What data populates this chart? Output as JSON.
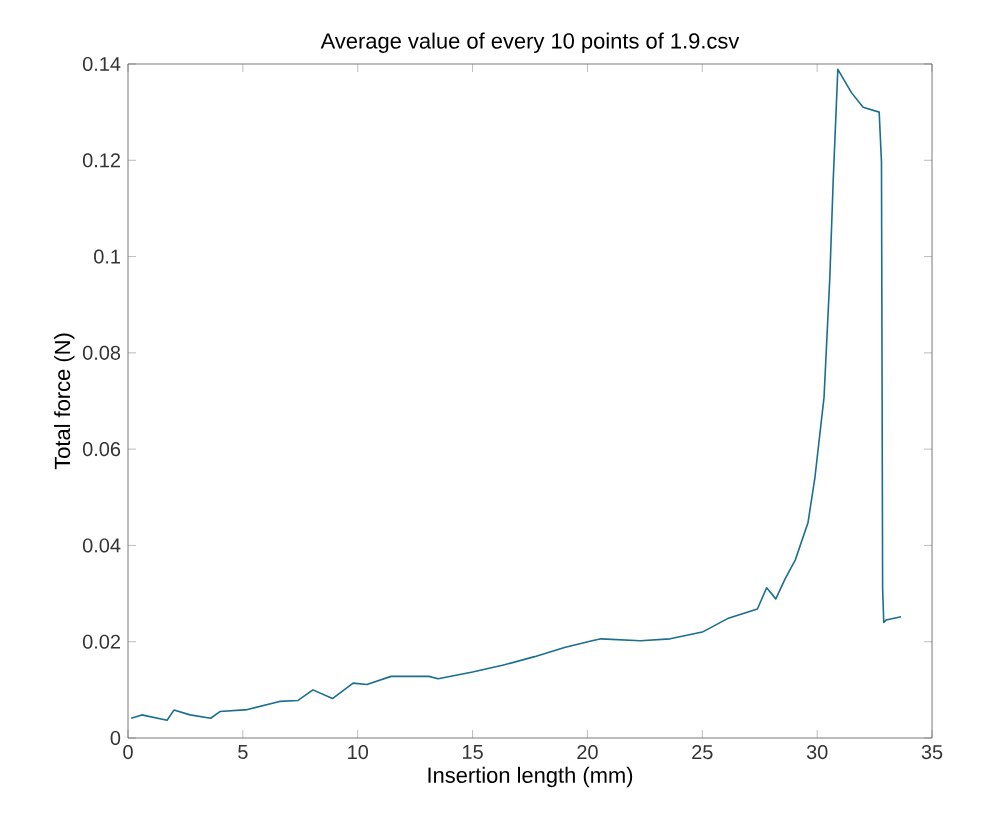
{
  "chart_data": {
    "type": "line",
    "title": "Average value of every 10 points of 1.9.csv",
    "xlabel": "Insertion length (mm)",
    "ylabel": "Total force (N)",
    "xlim": [
      0,
      35
    ],
    "ylim": [
      0,
      0.14
    ],
    "xticks": [
      0,
      5,
      10,
      15,
      20,
      25,
      30,
      35
    ],
    "yticks": [
      0,
      0.02,
      0.04,
      0.06,
      0.08,
      0.1,
      0.12,
      0.14
    ],
    "grid": false,
    "marker": "none",
    "line_style": "solid",
    "series": [
      {
        "color": "#1a6e8e",
        "x": [
          0.14,
          0.6,
          1.7,
          2.0,
          2.7,
          3.6,
          4.0,
          5.2,
          6.6,
          7.4,
          8.05,
          8.9,
          9.8,
          10.4,
          11.45,
          13.1,
          13.5,
          15.0,
          16.3,
          17.7,
          19.0,
          20.2,
          20.6,
          22.3,
          23.6,
          25.0,
          26.1,
          27.4,
          27.8,
          28.2,
          28.6,
          29.05,
          29.6,
          29.9,
          30.3,
          30.55,
          30.7,
          30.9,
          31.5,
          32.0,
          32.7,
          32.8,
          32.85,
          32.9,
          33.0,
          33.65
        ],
        "values": [
          0.0041,
          0.0048,
          0.0037,
          0.0058,
          0.0048,
          0.0041,
          0.0055,
          0.0059,
          0.0076,
          0.0078,
          0.01,
          0.0082,
          0.0114,
          0.0111,
          0.0128,
          0.0128,
          0.0123,
          0.0137,
          0.0151,
          0.0169,
          0.0188,
          0.0202,
          0.0206,
          0.0202,
          0.0206,
          0.022,
          0.0248,
          0.0268,
          0.0312,
          0.0289,
          0.033,
          0.037,
          0.0447,
          0.054,
          0.0708,
          0.0955,
          0.116,
          0.1389,
          0.134,
          0.131,
          0.13,
          0.1196,
          0.031,
          0.024,
          0.0245,
          0.0252
        ]
      }
    ]
  }
}
